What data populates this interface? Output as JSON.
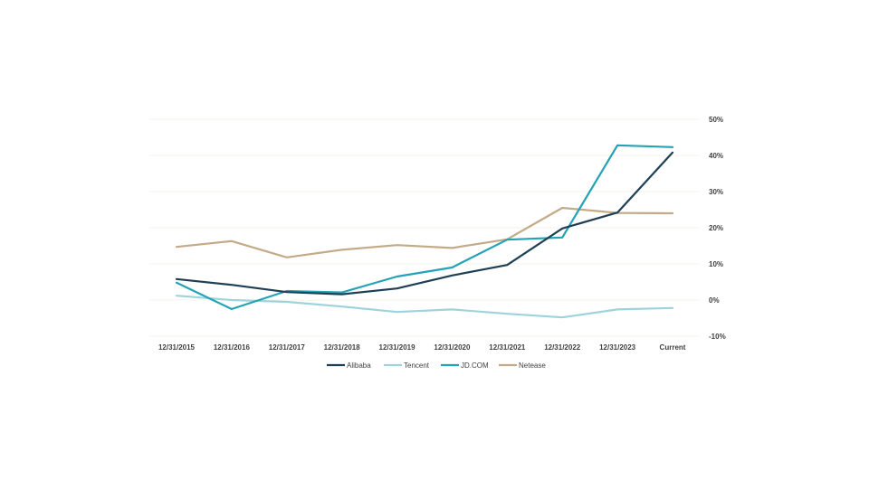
{
  "chart_data": {
    "type": "line",
    "title": "",
    "xlabel": "",
    "ylabel": "",
    "categories": [
      "12/31/2015",
      "12/31/2016",
      "12/31/2017",
      "12/31/2018",
      "12/31/2019",
      "12/31/2020",
      "12/31/2021",
      "12/31/2022",
      "12/31/2023",
      "Current"
    ],
    "ylim": [
      -10,
      50
    ],
    "yticks": [
      50,
      40,
      30,
      20,
      10,
      0,
      -10
    ],
    "ytick_labels": [
      "50%",
      "40%",
      "30%",
      "20%",
      "10%",
      "0%",
      "-10%"
    ],
    "y_axis_position": "right",
    "grid": true,
    "legend_position": "bottom",
    "series": [
      {
        "name": "Alibaba",
        "color": "#1f3f55",
        "values": [
          5.8,
          4.2,
          2.2,
          1.6,
          3.2,
          6.8,
          9.7,
          19.8,
          24.2,
          40.8
        ]
      },
      {
        "name": "Tencent",
        "color": "#9ed3dc",
        "values": [
          1.2,
          0.0,
          -0.5,
          -1.8,
          -3.3,
          -2.6,
          -3.8,
          -4.8,
          -2.6,
          -2.2
        ]
      },
      {
        "name": "JD.COM",
        "color": "#23a3b5",
        "values": [
          4.8,
          -2.5,
          2.5,
          2.1,
          6.5,
          9.0,
          16.7,
          17.3,
          42.8,
          42.3
        ]
      },
      {
        "name": "Netease",
        "color": "#c3aa88",
        "values": [
          14.7,
          16.3,
          11.8,
          13.9,
          15.2,
          14.4,
          16.8,
          25.5,
          24.1,
          24.0
        ]
      }
    ]
  }
}
